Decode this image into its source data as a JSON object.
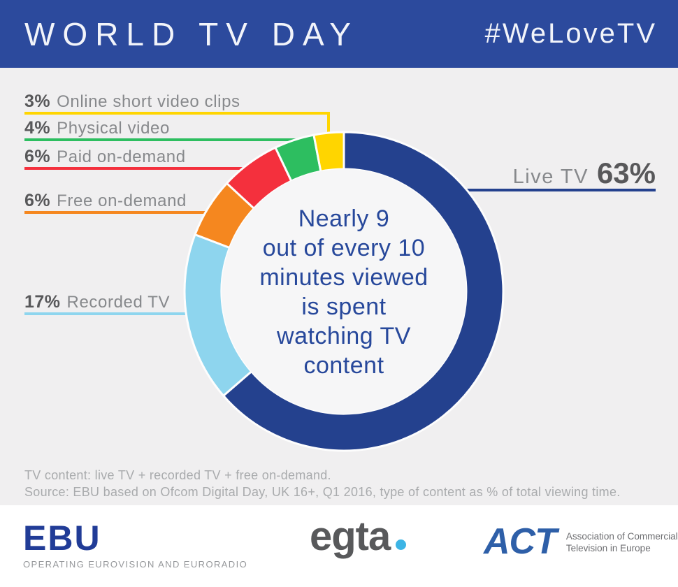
{
  "header": {
    "title": "WORLD TV DAY",
    "hashtag": "#WeLoveTV"
  },
  "colors": {
    "header_bg": "#2c4a9d",
    "chart_bg": "#f0eff0",
    "center_text": "#27489b",
    "pct_text": "#58585a",
    "label_text": "#87898c",
    "footnote_text": "#a9abad",
    "ebu_blue": "#213c97",
    "egta_gray": "#58595b",
    "egta_dot_blue": "#3cb4e5",
    "act_blue": "#2e5fa8"
  },
  "chart_data": {
    "type": "donut",
    "unit": "%",
    "note": "type of content as % of total viewing time",
    "segments": [
      {
        "label": "Live TV",
        "value": 63,
        "pct_label": "63%",
        "color": "#24418e",
        "label_side": "right"
      },
      {
        "label": "Recorded TV",
        "value": 17,
        "pct_label": "17%",
        "color": "#8ed5ee",
        "label_side": "left"
      },
      {
        "label": "Free on-demand",
        "value": 6,
        "pct_label": "6%",
        "color": "#f5871f",
        "label_side": "left"
      },
      {
        "label": "Paid on-demand",
        "value": 6,
        "pct_label": "6%",
        "color": "#f4303d",
        "label_side": "left"
      },
      {
        "label": "Physical video",
        "value": 4,
        "pct_label": "4%",
        "color": "#2dbe60",
        "label_side": "left"
      },
      {
        "label": "Online short video clips",
        "value": 3,
        "pct_label": "3%",
        "color": "#ffd500",
        "label_side": "left"
      }
    ],
    "center_text_lines": [
      "Nearly 9",
      "out of every 10",
      "minutes viewed",
      "is spent",
      "watching TV",
      "content"
    ]
  },
  "footnote": {
    "line1": "TV content: live TV + recorded TV + free on-demand.",
    "line2": "Source: EBU based on Ofcom Digital Day, UK 16+, Q1 2016, type of content as % of total viewing time."
  },
  "footer_logos": {
    "ebu": {
      "name": "EBU",
      "tagline": "OPERATING EUROVISION AND EURORADIO"
    },
    "egta": {
      "name": "egta"
    },
    "act": {
      "name": "ACT",
      "tagline_line1": "Association of Commercial",
      "tagline_line2": "Television in Europe"
    }
  }
}
